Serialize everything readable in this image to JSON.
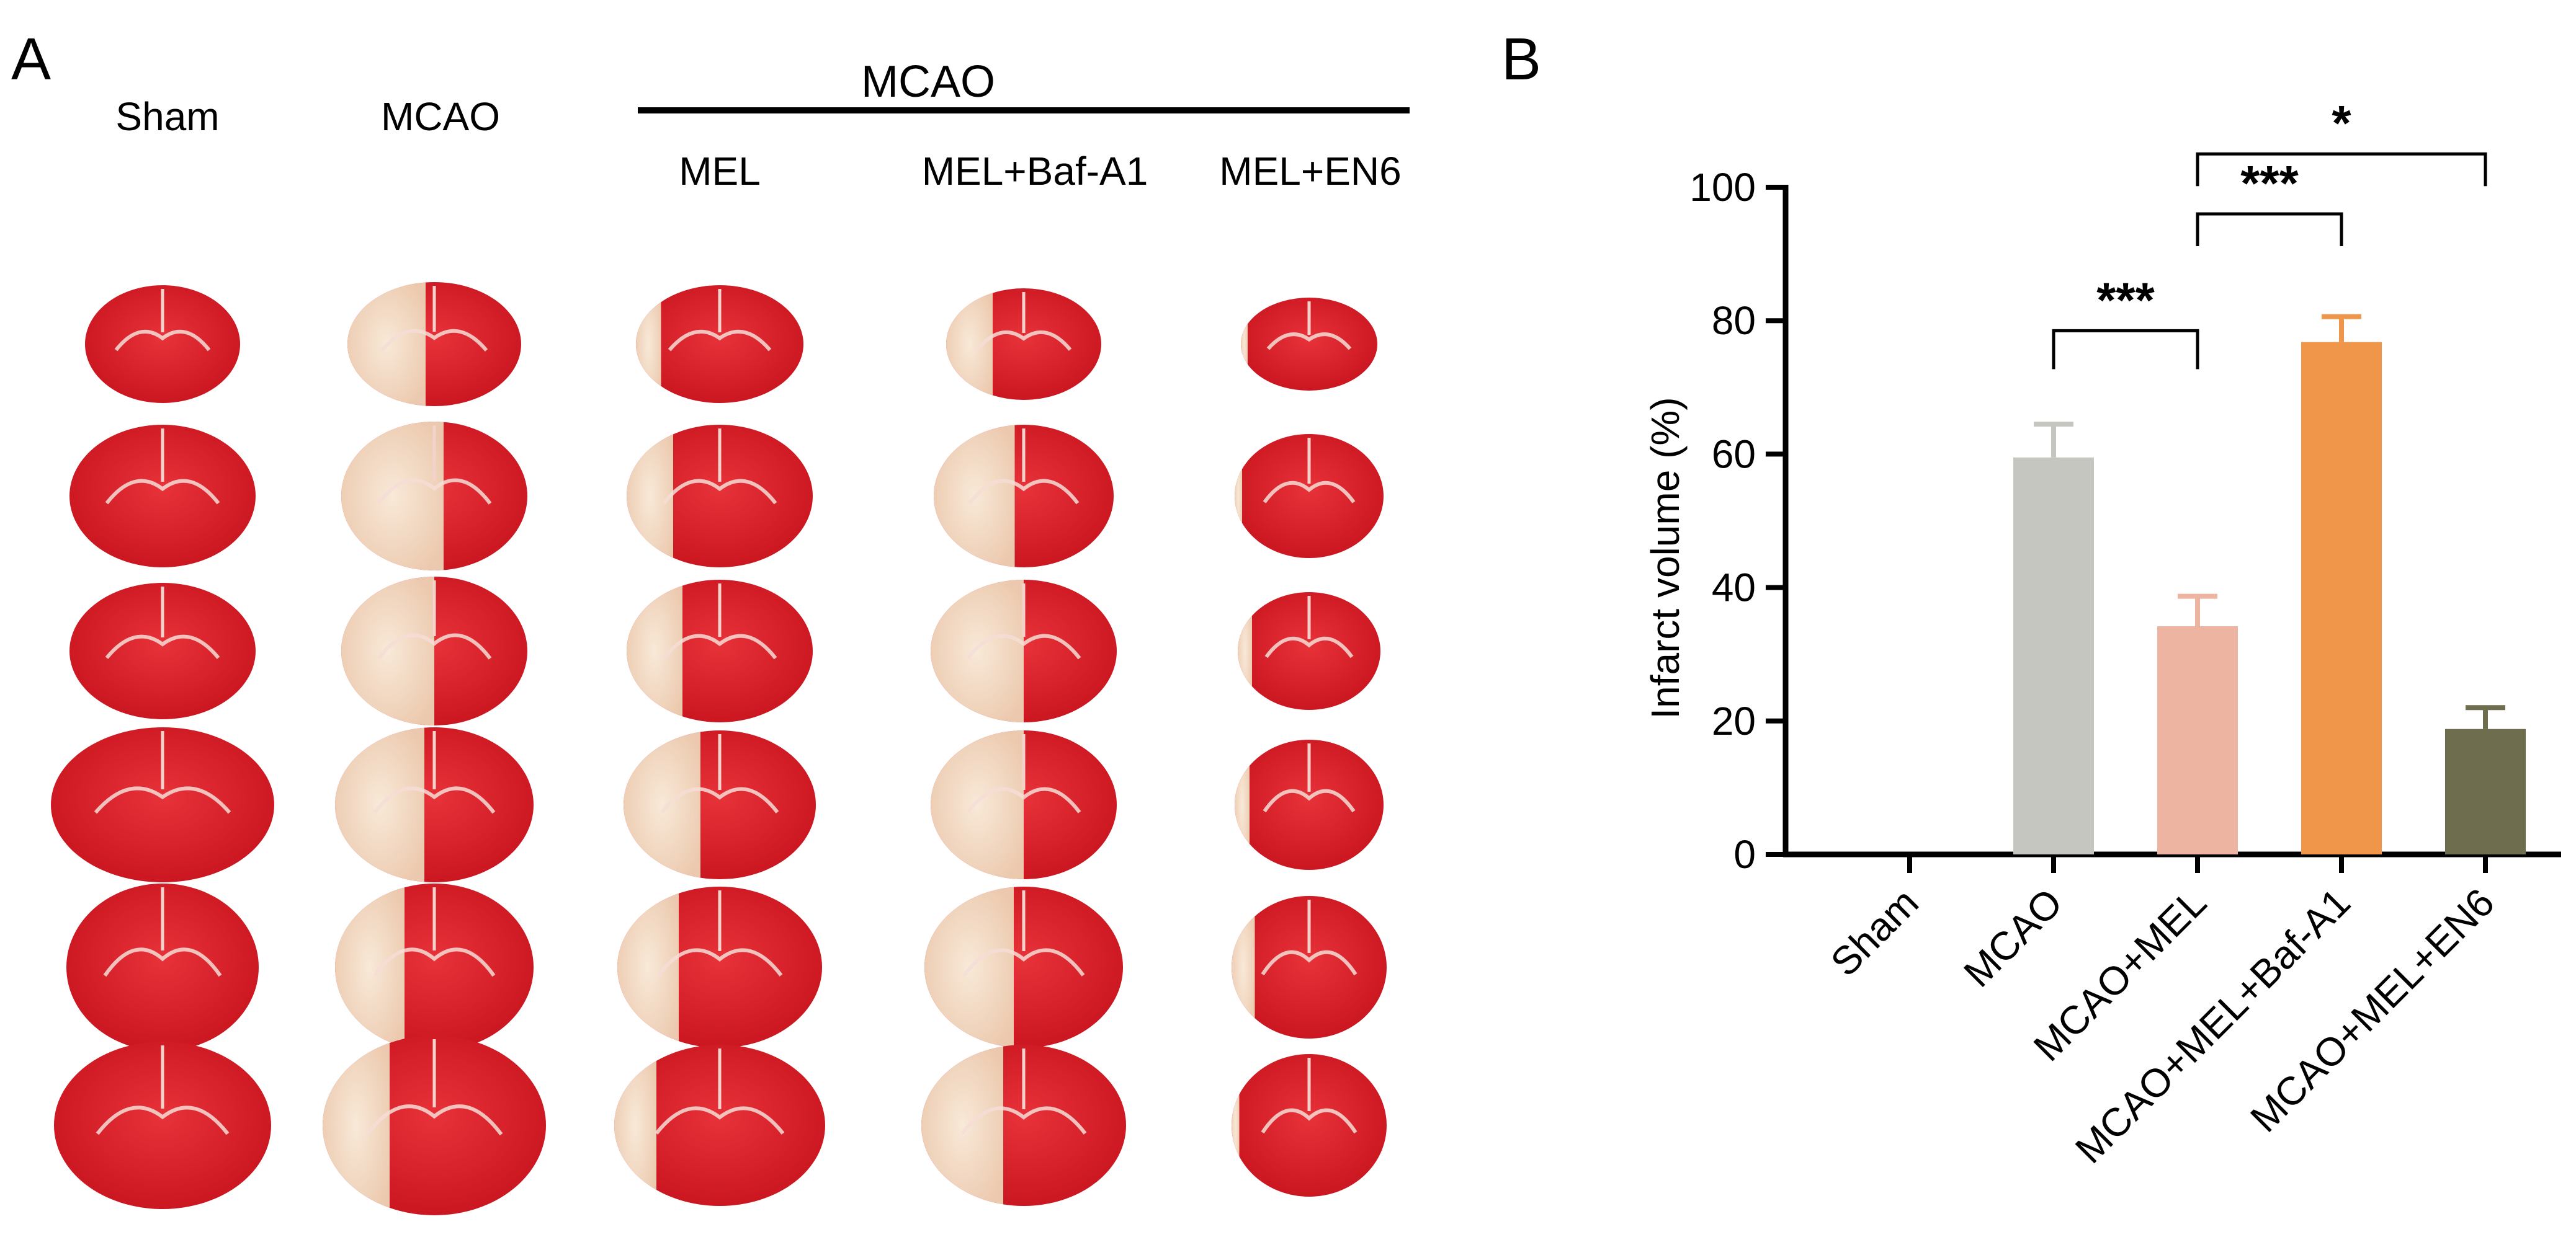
{
  "panel_a": {
    "letter": "A",
    "group_header": "MCAO",
    "column_labels": [
      "Sham",
      "MCAO",
      "MEL",
      "MEL+Baf-A1",
      "MEL+EN6"
    ],
    "rows": 6
  },
  "panel_b": {
    "letter": "B"
  },
  "colors": {
    "tissue_red": "#d81e28",
    "tissue_pale": "#f3dcc6",
    "bar_sham": "#ffffff",
    "bar_mcao": "#c6c6c0",
    "bar_mel": "#eeb4a2",
    "bar_baf": "#f0964a",
    "bar_en6": "#6e6e4e"
  },
  "chart_data": {
    "type": "bar",
    "categories": [
      "Sham",
      "MCAO",
      "MCAO+MEL",
      "MCAO+MEL+Baf-A1",
      "MCAO+MEL+EN6"
    ],
    "values": [
      0,
      59.5,
      34.2,
      76.8,
      18.8
    ],
    "errors": [
      0,
      5.0,
      4.5,
      3.8,
      3.2
    ],
    "title": "",
    "xlabel": "",
    "ylabel": "Infarct volume (%)",
    "ylim": [
      0,
      100
    ],
    "yticks": [
      0,
      20,
      40,
      60,
      80,
      100
    ],
    "grid": false,
    "significance": [
      {
        "from": 1,
        "to": 2,
        "label": "***"
      },
      {
        "from": 2,
        "to": 3,
        "label": "***"
      },
      {
        "from": 2,
        "to": 4,
        "label": "*"
      }
    ]
  }
}
